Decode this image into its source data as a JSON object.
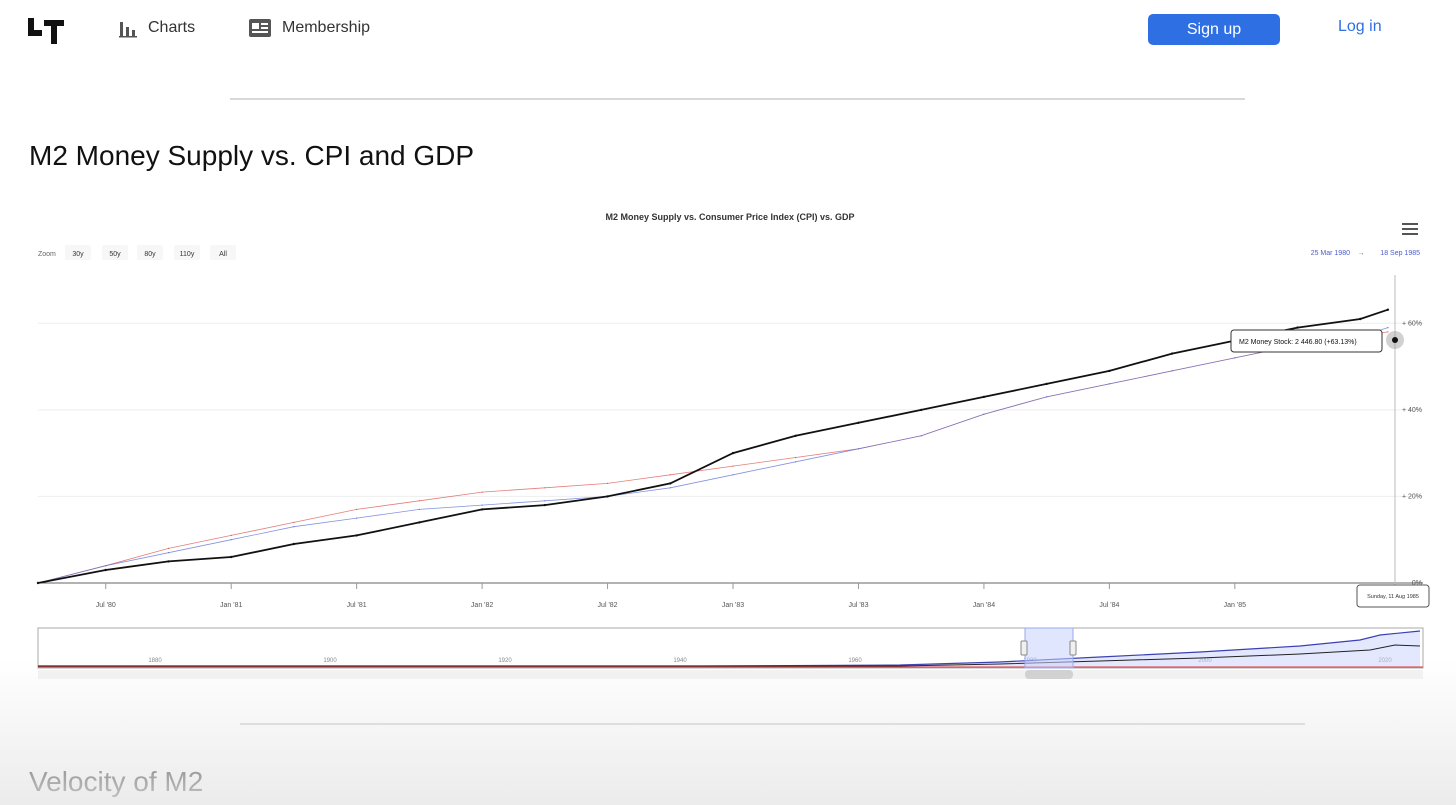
{
  "nav": {
    "charts_label": "Charts",
    "membership_label": "Membership",
    "signup_label": "Sign up",
    "login_label": "Log in"
  },
  "page": {
    "title": "M2 Money Supply vs. CPI and GDP",
    "next_section_title": "Velocity of M2"
  },
  "chart": {
    "title": "M2 Money Supply vs. Consumer Price Index (CPI) vs. GDP",
    "menu_icon": "hamburger-icon",
    "zoom": {
      "label": "Zoom",
      "buttons": [
        "30y",
        "50y",
        "80y",
        "110y",
        "All"
      ]
    },
    "range_from": "25 Mar 1980",
    "range_arrow": "→",
    "range_to": "18 Sep 1985",
    "tooltip": "M2 Money Stock: 2 446.80 (+63.13%)",
    "crosshair_date": "Sunday, 11 Aug 1985",
    "colors": {
      "m2": "#111111",
      "cpi": "#d9534f",
      "gdp": "#5b6fd6",
      "navigator_m2": "#3b3fb5",
      "navigator_cpi": "#e03030",
      "navigator_band": "#c9d2ff"
    }
  },
  "chart_data": {
    "type": "line",
    "title": "M2 Money Supply vs. Consumer Price Index (CPI) vs. GDP",
    "xlabel": "",
    "ylabel": "",
    "x_ticks": [
      "Jul '80",
      "Jan '81",
      "Jul '81",
      "Jan '82",
      "Jul '82",
      "Jan '83",
      "Jul '83",
      "Jan '84",
      "Jul '84",
      "Jan '85"
    ],
    "y_ticks": [
      "0%",
      "+ 20%",
      "+ 40%",
      "+ 60%"
    ],
    "ylim": [
      0,
      70
    ],
    "grid": true,
    "series": [
      {
        "name": "M2 Money Stock",
        "x": [
          1980.23,
          1980.5,
          1980.75,
          1981.0,
          1981.25,
          1981.5,
          1981.75,
          1982.0,
          1982.25,
          1982.5,
          1982.75,
          1983.0,
          1983.25,
          1983.5,
          1983.75,
          1984.0,
          1984.25,
          1984.5,
          1984.75,
          1985.0,
          1985.25,
          1985.5,
          1985.61
        ],
        "y": [
          0,
          3,
          5,
          6,
          9,
          11,
          14,
          17,
          18,
          20,
          23,
          30,
          34,
          37,
          40,
          43,
          46,
          49,
          53,
          56,
          59,
          61,
          63.13
        ]
      },
      {
        "name": "CPI",
        "x": [
          1980.23,
          1980.5,
          1980.75,
          1981.0,
          1981.25,
          1981.5,
          1981.75,
          1982.0,
          1982.25,
          1982.5,
          1982.75,
          1983.0,
          1983.25,
          1983.5,
          1983.75,
          1984.0,
          1984.25,
          1984.5,
          1984.75,
          1985.0,
          1985.25,
          1985.5,
          1985.61
        ],
        "y": [
          0,
          4,
          8,
          11,
          14,
          17,
          19,
          21,
          22,
          23,
          25,
          27,
          29,
          31,
          34,
          39,
          43,
          46,
          49,
          52,
          55,
          57,
          58
        ]
      },
      {
        "name": "GDP",
        "x": [
          1980.23,
          1980.5,
          1980.75,
          1981.0,
          1981.25,
          1981.5,
          1981.75,
          1982.0,
          1982.25,
          1982.5,
          1982.75,
          1983.0,
          1983.25,
          1983.5,
          1983.75,
          1984.0,
          1984.25,
          1984.5,
          1984.75,
          1985.0,
          1985.25,
          1985.5,
          1985.61
        ],
        "y": [
          0,
          4,
          7,
          10,
          13,
          15,
          17,
          18,
          19,
          20,
          22,
          25,
          28,
          31,
          34,
          39,
          43,
          46,
          49,
          52,
          55,
          57,
          59
        ]
      }
    ]
  },
  "navigator": {
    "ticks": [
      "1880",
      "1900",
      "1920",
      "1940",
      "1960",
      "1980",
      "2000",
      "2020"
    ]
  }
}
